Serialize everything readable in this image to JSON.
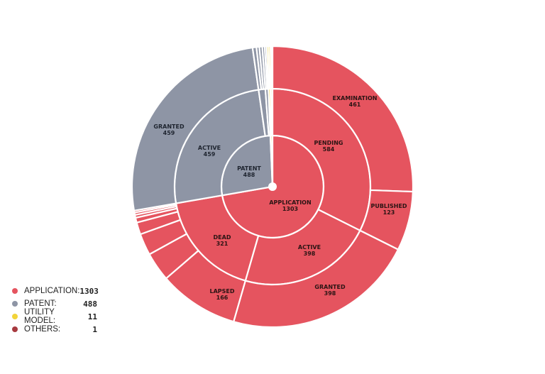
{
  "chart_data": {
    "type": "sunburst",
    "colors": {
      "application": "#e5545f",
      "patent": "#8e95a5",
      "utility_model": "#f2d43a",
      "others": "#a73a3f"
    },
    "rings": [
      {
        "level": 1,
        "segments": [
          {
            "name": "APPLICATION",
            "value": 1303,
            "group": "application",
            "labeled": true
          },
          {
            "name": "PATENT",
            "value": 488,
            "group": "patent",
            "labeled": true
          },
          {
            "name": "UTILITY MODEL",
            "value": 11,
            "group": "utility_model",
            "labeled": false
          },
          {
            "name": "OTHERS",
            "value": 1,
            "group": "others",
            "labeled": false
          }
        ]
      },
      {
        "level": 2,
        "segments": [
          {
            "name": "PENDING",
            "value": 584,
            "group": "application",
            "labeled": true
          },
          {
            "name": "ACTIVE",
            "value": 398,
            "group": "application",
            "labeled": true
          },
          {
            "name": "DEAD",
            "value": 321,
            "group": "application",
            "labeled": true
          },
          {
            "name": "ACTIVE",
            "value": 459,
            "group": "patent",
            "labeled": true
          },
          {
            "name": "",
            "value": 20,
            "group": "patent",
            "labeled": false
          },
          {
            "name": "",
            "value": 9,
            "group": "patent",
            "labeled": false
          },
          {
            "name": "",
            "value": 6,
            "group": "utility_model",
            "labeled": false
          },
          {
            "name": "",
            "value": 5,
            "group": "utility_model",
            "labeled": false
          },
          {
            "name": "",
            "value": 1,
            "group": "others",
            "labeled": false
          }
        ]
      },
      {
        "level": 3,
        "segments": [
          {
            "name": "EXAMINATION",
            "value": 461,
            "group": "application",
            "labeled": true
          },
          {
            "name": "PUBLISHED",
            "value": 123,
            "group": "application",
            "labeled": true
          },
          {
            "name": "GRANTED",
            "value": 398,
            "group": "application",
            "labeled": true
          },
          {
            "name": "LAPSED",
            "value": 166,
            "group": "application",
            "labeled": true
          },
          {
            "name": "",
            "value": 60,
            "group": "application",
            "labeled": false
          },
          {
            "name": "",
            "value": 45,
            "group": "application",
            "labeled": false
          },
          {
            "name": "",
            "value": 25,
            "group": "application",
            "labeled": false
          },
          {
            "name": "",
            "value": 10,
            "group": "application",
            "labeled": false
          },
          {
            "name": "",
            "value": 6,
            "group": "application",
            "labeled": false
          },
          {
            "name": "",
            "value": 5,
            "group": "application",
            "labeled": false
          },
          {
            "name": "",
            "value": 4,
            "group": "application",
            "labeled": false
          },
          {
            "name": "GRANTED",
            "value": 459,
            "group": "patent",
            "labeled": true
          },
          {
            "name": "",
            "value": 8,
            "group": "patent",
            "labeled": false
          },
          {
            "name": "",
            "value": 6,
            "group": "patent",
            "labeled": false
          },
          {
            "name": "",
            "value": 6,
            "group": "patent",
            "labeled": false
          },
          {
            "name": "",
            "value": 5,
            "group": "patent",
            "labeled": false
          },
          {
            "name": "",
            "value": 4,
            "group": "patent",
            "labeled": false
          },
          {
            "name": "",
            "value": 4,
            "group": "utility_model",
            "labeled": false
          },
          {
            "name": "",
            "value": 4,
            "group": "utility_model",
            "labeled": false
          },
          {
            "name": "",
            "value": 3,
            "group": "utility_model",
            "labeled": false
          },
          {
            "name": "",
            "value": 1,
            "group": "others",
            "labeled": false
          }
        ]
      }
    ],
    "legend": {
      "placement": "bottom-left",
      "items": [
        {
          "label": "APPLICATION:",
          "value": "1303",
          "group": "application"
        },
        {
          "label": "PATENT:",
          "value": "488",
          "group": "patent"
        },
        {
          "label": "UTILITY MODEL:",
          "value": "11",
          "group": "utility_model"
        },
        {
          "label": "OTHERS:",
          "value": "1",
          "group": "others"
        }
      ]
    }
  }
}
